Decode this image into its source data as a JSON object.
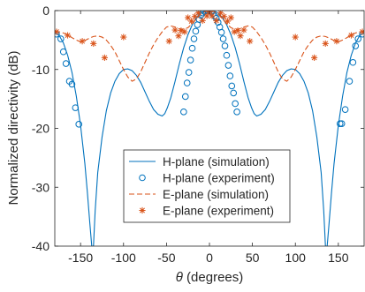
{
  "chart_data": {
    "type": "line",
    "xlabel_symbol": "θ",
    "xlabel_unit": "(degrees)",
    "ylabel": "Normalized directivity (dB)",
    "xlim": [
      -180,
      180
    ],
    "ylim": [
      -40,
      0
    ],
    "xticks": [
      -150,
      -100,
      -50,
      0,
      50,
      100,
      150
    ],
    "xtick_labels": [
      "-150",
      "-100",
      "-50",
      "0",
      "50",
      "100",
      "150"
    ],
    "yticks": [
      0,
      -10,
      -20,
      -30,
      -40
    ],
    "ytick_labels": [
      "0",
      "-10",
      "-20",
      "-30",
      "-40"
    ],
    "grid": false,
    "legend_position": "center",
    "colors": {
      "h_plane": "#0072BD",
      "e_plane": "#D95319",
      "axis": "#262626"
    },
    "series": [
      {
        "name": "H-plane (simulation)",
        "style": "solid-line",
        "x": [
          -180,
          -175,
          -170,
          -165,
          -160,
          -155,
          -150,
          -145,
          -142,
          -139,
          -137,
          -135,
          -133,
          -130,
          -125,
          -120,
          -115,
          -110,
          -105,
          -100,
          -95,
          -90,
          -85,
          -80,
          -75,
          -70,
          -65,
          -60,
          -55,
          -52,
          -49,
          -45,
          -40,
          -35,
          -30,
          -25,
          -20,
          -15,
          -10,
          -5,
          0,
          5,
          10,
          15,
          20,
          25,
          30,
          35,
          40,
          45,
          49,
          52,
          55,
          60,
          65,
          70,
          75,
          80,
          85,
          90,
          95,
          100,
          105,
          110,
          115,
          120,
          125,
          130,
          133,
          135,
          137,
          139,
          142,
          145,
          150,
          155,
          160,
          165,
          170,
          175,
          180
        ],
        "y": [
          -3.8,
          -4.2,
          -5.5,
          -7.6,
          -10.5,
          -14.5,
          -19.5,
          -26,
          -31,
          -36.5,
          -40,
          -40,
          -34,
          -27.5,
          -21.5,
          -17,
          -14,
          -12,
          -10.7,
          -10,
          -9.9,
          -10.2,
          -11,
          -12.2,
          -13.8,
          -15.4,
          -16.8,
          -17.6,
          -17.9,
          -17.5,
          -16.5,
          -14.8,
          -12,
          -9,
          -6.3,
          -4.1,
          -2.4,
          -1.2,
          -0.4,
          -0.05,
          0,
          -0.05,
          -0.4,
          -1.2,
          -2.4,
          -4.1,
          -6.3,
          -9,
          -12,
          -14.8,
          -16.5,
          -17.5,
          -17.9,
          -17.6,
          -16.8,
          -15.4,
          -13.8,
          -12.2,
          -11,
          -10.2,
          -9.9,
          -10,
          -10.7,
          -12,
          -14,
          -17,
          -21.5,
          -27.5,
          -34,
          -40,
          -40,
          -36.5,
          -31,
          -26,
          -19.5,
          -14.5,
          -10.5,
          -7.6,
          -5.5,
          -4.2,
          -3.8
        ]
      },
      {
        "name": "H-plane (experiment)",
        "style": "circle-markers",
        "x": [
          -178,
          -173,
          -170,
          -167,
          -163,
          -160,
          -156,
          -152,
          -30,
          -28,
          -26,
          -24,
          -22,
          -20,
          -18,
          -16,
          -14,
          -12,
          -10,
          -8,
          -6,
          -4,
          -2,
          0,
          2,
          4,
          6,
          8,
          10,
          12,
          14,
          16,
          18,
          20,
          22,
          24,
          26,
          28,
          30,
          32,
          152,
          154,
          158,
          163,
          167,
          170,
          173,
          178
        ],
        "y": [
          -4.0,
          -4.8,
          -7.0,
          -9.0,
          -12.0,
          -12.5,
          -16.5,
          -19.3,
          -17.2,
          -14.6,
          -12.3,
          -10.5,
          -8.4,
          -6.4,
          -4.8,
          -3.5,
          -2.4,
          -1.5,
          -0.8,
          -0.4,
          -0.15,
          -0.05,
          0,
          -0.05,
          -0.2,
          -0.5,
          -0.9,
          -1.3,
          -2.0,
          -2.8,
          -3.7,
          -4.8,
          -6.0,
          -7.6,
          -9.3,
          -11.1,
          -12.8,
          -14.0,
          -15.8,
          -17.2,
          -19.2,
          -19.2,
          -16.8,
          -12.0,
          -8.8,
          -6.0,
          -4.8,
          -4.0
        ]
      },
      {
        "name": "E-plane (simulation)",
        "style": "dashed-line",
        "x": [
          -180,
          -175,
          -170,
          -165,
          -160,
          -155,
          -150,
          -145,
          -140,
          -135,
          -130,
          -125,
          -120,
          -115,
          -110,
          -105,
          -100,
          -95,
          -90,
          -85,
          -80,
          -75,
          -70,
          -65,
          -60,
          -55,
          -50,
          -45,
          -40,
          -35,
          -30,
          -25,
          -20,
          -15,
          -10,
          -5,
          0,
          5,
          10,
          15,
          20,
          25,
          30,
          35,
          40,
          45,
          50,
          55,
          60,
          65,
          70,
          75,
          80,
          85,
          90,
          95,
          100,
          105,
          110,
          115,
          120,
          125,
          130,
          135,
          140,
          145,
          150,
          155,
          160,
          165,
          170,
          175,
          180
        ],
        "y": [
          -3.5,
          -3.6,
          -3.8,
          -4.1,
          -4.6,
          -5.0,
          -5.3,
          -5.1,
          -4.7,
          -4.4,
          -4.3,
          -4.5,
          -5.0,
          -5.9,
          -7.0,
          -8.5,
          -10.0,
          -11.3,
          -12.0,
          -11.6,
          -10.4,
          -8.8,
          -7.2,
          -5.8,
          -4.6,
          -3.6,
          -2.8,
          -2.6,
          -2.8,
          -3.1,
          -3.2,
          -2.9,
          -2.2,
          -1.4,
          -0.6,
          -0.15,
          0,
          -0.15,
          -0.6,
          -1.4,
          -2.2,
          -2.9,
          -3.2,
          -3.1,
          -2.8,
          -2.6,
          -2.8,
          -3.6,
          -4.6,
          -5.8,
          -7.2,
          -8.8,
          -10.4,
          -11.6,
          -12.0,
          -11.3,
          -10.0,
          -8.5,
          -7.0,
          -5.9,
          -5.0,
          -4.5,
          -4.3,
          -4.4,
          -4.7,
          -5.1,
          -5.3,
          -5.0,
          -4.6,
          -4.1,
          -3.8,
          -3.6,
          -3.5
        ]
      },
      {
        "name": "E-plane (experiment)",
        "style": "star-markers",
        "x": [
          -178,
          -165,
          -148,
          -135,
          -122,
          -100,
          -47,
          -40,
          -36,
          -33,
          -29,
          -25,
          -21,
          -17,
          -13,
          -8,
          -3,
          0,
          3,
          8,
          13,
          17,
          21,
          25,
          29,
          33,
          36,
          40,
          47,
          100,
          122,
          135,
          148,
          165,
          178
        ],
        "y": [
          -3.6,
          -4.2,
          -5.2,
          -5.6,
          -8.0,
          -4.5,
          -5.2,
          -3.3,
          -4.3,
          -3.4,
          -3.6,
          -1.2,
          -1.8,
          -1.0,
          -0.4,
          -1.7,
          -0.9,
          -0.2,
          -0.9,
          -1.7,
          -0.4,
          -1.0,
          -1.8,
          -1.2,
          -3.6,
          -3.4,
          -4.3,
          -3.3,
          -5.2,
          -4.5,
          -8.0,
          -5.6,
          -5.2,
          -4.2,
          -3.6
        ]
      }
    ]
  }
}
